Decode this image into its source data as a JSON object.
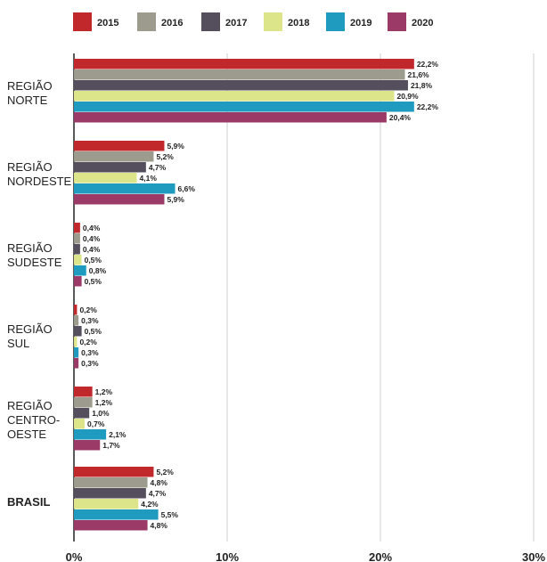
{
  "chart_data": {
    "type": "bar",
    "orientation": "horizontal",
    "xlim": [
      0,
      30
    ],
    "x_ticks": [
      "0%",
      "10%",
      "20%",
      "30%"
    ],
    "grid": true,
    "legend_position": "top",
    "series": [
      {
        "name": "2015",
        "color": "#c0282c",
        "values": [
          22.2,
          5.9,
          0.4,
          0.2,
          1.2,
          5.2
        ],
        "labels": [
          "22,2%",
          "5,9%",
          "0,4%",
          "0,2%",
          "1,2%",
          "5,2%"
        ]
      },
      {
        "name": "2016",
        "color": "#9c9b8e",
        "values": [
          21.6,
          5.2,
          0.4,
          0.3,
          1.2,
          4.8
        ],
        "labels": [
          "21,6%",
          "5,2%",
          "0,4%",
          "0,3%",
          "1,2%",
          "4,8%"
        ]
      },
      {
        "name": "2017",
        "color": "#554e5c",
        "values": [
          21.8,
          4.7,
          0.4,
          0.5,
          1.0,
          4.7
        ],
        "labels": [
          "21,8%",
          "4,7%",
          "0,4%",
          "0,5%",
          "1,0%",
          "4,7%"
        ]
      },
      {
        "name": "2018",
        "color": "#dde58a",
        "values": [
          20.9,
          4.1,
          0.5,
          0.2,
          0.7,
          4.2
        ],
        "labels": [
          "20,9%",
          "4,1%",
          "0,5%",
          "0,2%",
          "0,7%",
          "4,2%"
        ]
      },
      {
        "name": "2019",
        "color": "#1e9bbf",
        "values": [
          22.2,
          6.6,
          0.8,
          0.3,
          2.1,
          5.5
        ],
        "labels": [
          "22,2%",
          "6,6%",
          "0,8%",
          "0,3%",
          "2,1%",
          "5,5%"
        ]
      },
      {
        "name": "2020",
        "color": "#9b3a66",
        "values": [
          20.4,
          5.9,
          0.5,
          0.3,
          1.7,
          4.8
        ],
        "labels": [
          "20,4%",
          "5,9%",
          "0,5%",
          "0,3%",
          "1,7%",
          "4,8%"
        ]
      }
    ],
    "categories": [
      {
        "name": "REGIÃO NORTE",
        "lines": [
          "REGIÃO",
          "NORTE"
        ],
        "bold": false
      },
      {
        "name": "REGIÃO NORDESTE",
        "lines": [
          "REGIÃO",
          "NORDESTE"
        ],
        "bold": false
      },
      {
        "name": "REGIÃO SUDESTE",
        "lines": [
          "REGIÃO",
          "SUDESTE"
        ],
        "bold": false
      },
      {
        "name": "REGIÃO SUL",
        "lines": [
          "REGIÃO",
          "SUL"
        ],
        "bold": false
      },
      {
        "name": "REGIÃO CENTRO-OESTE",
        "lines": [
          "REGIÃO",
          "CENTRO-",
          "OESTE"
        ],
        "bold": false
      },
      {
        "name": "BRASIL",
        "lines": [
          "BRASIL"
        ],
        "bold": true
      }
    ]
  }
}
